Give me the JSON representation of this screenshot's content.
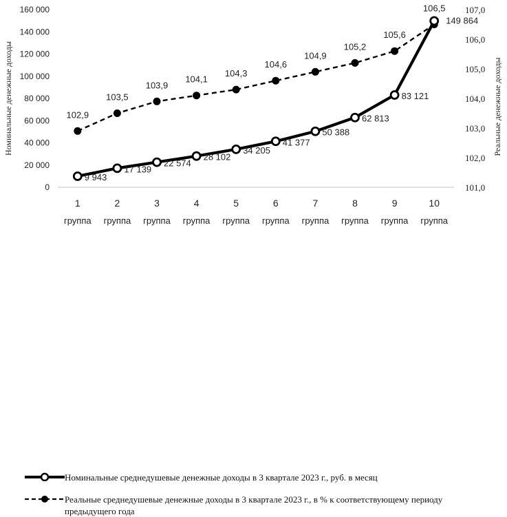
{
  "chart_data": {
    "type": "line",
    "categories": [
      "1\nгруппа",
      "2\nгруппа",
      "3\nгруппа",
      "4\nгруппа",
      "5\nгруппа",
      "6\nгруппа",
      "7\nгруппа",
      "8\nгруппа",
      "9\nгруппа",
      "10\nгруппа"
    ],
    "category_numbers": [
      "1",
      "2",
      "3",
      "4",
      "5",
      "6",
      "7",
      "8",
      "9",
      "10"
    ],
    "category_word": "группа",
    "ylabel_left": "Номинальные денежные доходы",
    "ylabel_right": "Реальные денежные доходы",
    "ylim_left": [
      0,
      160000
    ],
    "ylim_right": [
      101.0,
      107.0
    ],
    "left_ticks": [
      "0",
      "20 000",
      "40 000",
      "60 000",
      "80 000",
      "100 000",
      "120 000",
      "140 000",
      "160 000"
    ],
    "right_ticks": [
      "101,0",
      "102,0",
      "103,0",
      "104,0",
      "105,0",
      "106,0",
      "107,0"
    ],
    "series": [
      {
        "name": "Номинальные среднедушевые денежные доходы в 3 квартале 2023 г., руб. в месяц",
        "axis": "left",
        "style": "solid",
        "marker": "hollow-circle",
        "values": [
          9943,
          17139,
          22574,
          28102,
          34205,
          41377,
          50388,
          62813,
          83121,
          149864
        ],
        "labels": [
          "9 943",
          "17 139",
          "22 574",
          "28 102",
          "34 205",
          "41 377",
          "50 388",
          "62 813",
          "83 121",
          "149 864"
        ]
      },
      {
        "name": "Реальные среднедушевые денежные доходы в 3 квартале 2023 г., в % к соответствующему периоду предыдущего года",
        "axis": "right",
        "style": "dashed",
        "marker": "filled-circle",
        "values": [
          102.9,
          103.5,
          103.9,
          104.1,
          104.3,
          104.6,
          104.9,
          105.2,
          105.6,
          106.5
        ],
        "labels": [
          "102,9",
          "103,5",
          "103,9",
          "104,1",
          "104,3",
          "104,6",
          "104,9",
          "105,2",
          "105,6",
          "106,5"
        ]
      }
    ],
    "legend": {
      "position": "bottom",
      "items": [
        "Номинальные среднедушевые денежные доходы в 3 квартале 2023 г., руб. в месяц",
        "Реальные среднедушевые денежные доходы в 3 квартале 2023 г., в % к соответствующему периоду предыдущего года"
      ]
    },
    "grid": false,
    "colors": {
      "line": "#000000",
      "text": "#222222",
      "axis": "#bfbfbf"
    }
  }
}
